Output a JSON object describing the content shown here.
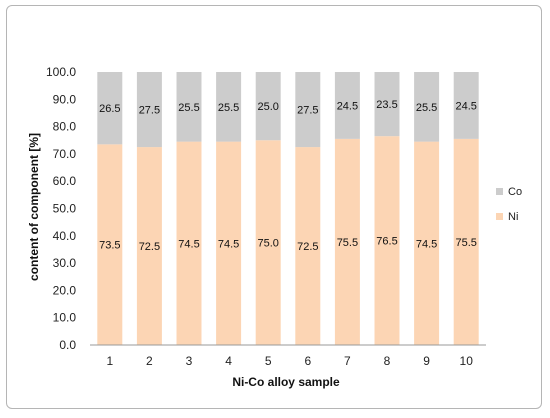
{
  "chart_data": {
    "type": "bar",
    "stacked": true,
    "title": "",
    "xlabel": "Ni-Co alloy sample",
    "ylabel": "content of component [%]",
    "categories": [
      "1",
      "2",
      "3",
      "4",
      "5",
      "6",
      "7",
      "8",
      "9",
      "10"
    ],
    "series": [
      {
        "name": "Ni",
        "color": "#fcd5b4",
        "values": [
          73.5,
          72.5,
          74.5,
          74.5,
          75.0,
          72.5,
          75.5,
          76.5,
          74.5,
          75.5
        ]
      },
      {
        "name": "Co",
        "color": "#cccccc",
        "values": [
          26.5,
          27.5,
          25.5,
          25.5,
          25.0,
          27.5,
          24.5,
          23.5,
          25.5,
          24.5
        ]
      }
    ],
    "ylim": [
      0,
      100
    ],
    "yticks": [
      "0.0",
      "10.0",
      "20.0",
      "30.0",
      "40.0",
      "50.0",
      "60.0",
      "70.0",
      "80.0",
      "90.0",
      "100.0"
    ],
    "legend_position": "right",
    "grid": false
  }
}
